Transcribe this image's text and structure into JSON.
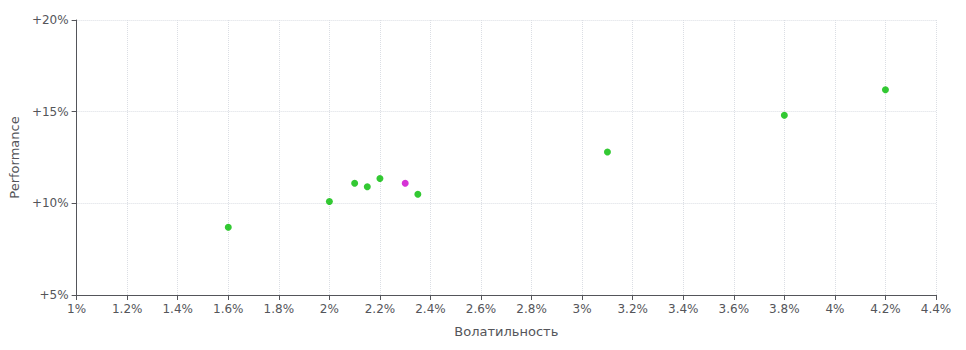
{
  "chart_data": {
    "type": "scatter",
    "xlabel": "Волатильность",
    "ylabel": "Performance",
    "xlim": [
      0.01,
      0.044
    ],
    "ylim": [
      0.05,
      0.2
    ],
    "xticks": [
      {
        "value": 0.01,
        "label": "1%"
      },
      {
        "value": 0.012,
        "label": "1.2%"
      },
      {
        "value": 0.014,
        "label": "1.4%"
      },
      {
        "value": 0.016,
        "label": "1.6%"
      },
      {
        "value": 0.018,
        "label": "1.8%"
      },
      {
        "value": 0.02,
        "label": "2%"
      },
      {
        "value": 0.022,
        "label": "2.2%"
      },
      {
        "value": 0.024,
        "label": "2.4%"
      },
      {
        "value": 0.026,
        "label": "2.6%"
      },
      {
        "value": 0.028,
        "label": "2.8%"
      },
      {
        "value": 0.03,
        "label": "3%"
      },
      {
        "value": 0.032,
        "label": "3.2%"
      },
      {
        "value": 0.034,
        "label": "3.4%"
      },
      {
        "value": 0.036,
        "label": "3.6%"
      },
      {
        "value": 0.038,
        "label": "3.8%"
      },
      {
        "value": 0.04,
        "label": "4%"
      },
      {
        "value": 0.042,
        "label": "4.2%"
      },
      {
        "value": 0.044,
        "label": "4.4%"
      }
    ],
    "yticks": [
      {
        "value": 0.05,
        "label": "+5%"
      },
      {
        "value": 0.1,
        "label": "+10%"
      },
      {
        "value": 0.15,
        "label": "+15%"
      },
      {
        "value": 0.2,
        "label": "+20%"
      }
    ],
    "series": [
      {
        "color": "#00bb00",
        "values": [
          [
            0.016,
            0.087
          ],
          [
            0.02,
            0.101
          ],
          [
            0.021,
            0.111
          ],
          [
            0.022,
            0.1135
          ],
          [
            0.0215,
            0.109
          ],
          [
            0.0235,
            0.105
          ],
          [
            0.031,
            0.128
          ],
          [
            0.038,
            0.148
          ],
          [
            0.042,
            0.162
          ]
        ]
      },
      {
        "color": "#cc00cc",
        "values": [
          [
            0.023,
            0.111
          ]
        ]
      }
    ],
    "grid": true
  }
}
